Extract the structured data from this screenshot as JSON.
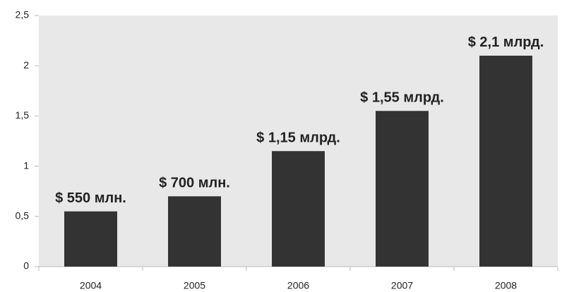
{
  "chart_data": {
    "type": "bar",
    "categories": [
      "2004",
      "2005",
      "2006",
      "2007",
      "2008"
    ],
    "values": [
      0.55,
      0.7,
      1.15,
      1.55,
      2.1
    ],
    "value_labels": [
      "$ 550 млн.",
      "$ 700 млн.",
      "$ 1,15 млрд.",
      "$ 1,55 млрд.",
      "$ 2,1 млрд."
    ],
    "color": "#333333",
    "ylim": [
      0,
      2.5
    ],
    "yticks": [
      0,
      {
        "value": 0.5,
        "label": "0,5"
      },
      1,
      {
        "value": 1.5,
        "label": "1,5"
      },
      2,
      {
        "value": 2.5,
        "label": "2,5"
      }
    ]
  }
}
